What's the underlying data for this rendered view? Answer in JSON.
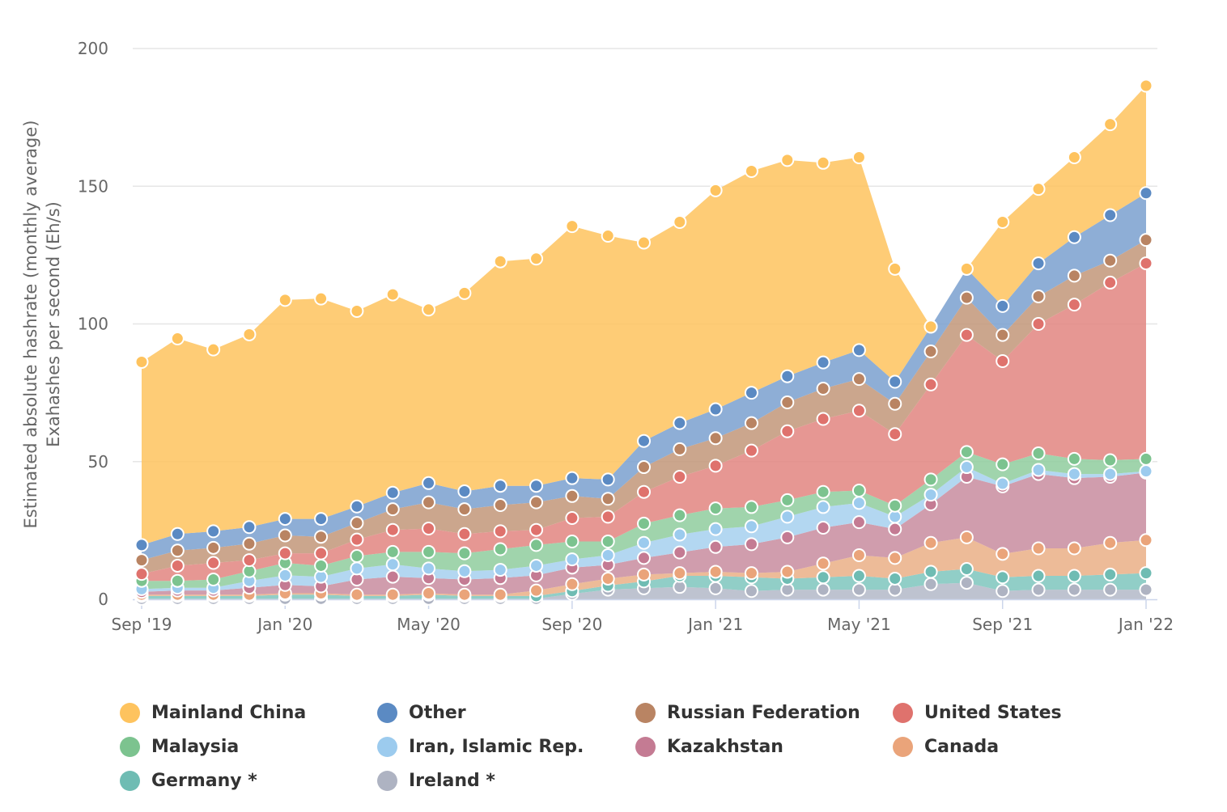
{
  "chart_data": {
    "type": "area",
    "stacked": true,
    "title": "",
    "ylabel": [
      "Estimated absolute hashrate (monthly average)",
      "Exahashes per second (Eh/s)"
    ],
    "ylim": [
      0,
      200
    ],
    "yticks": [
      0,
      50,
      100,
      150,
      200
    ],
    "x": [
      "2019-09",
      "2019-10",
      "2019-11",
      "2019-12",
      "2020-01",
      "2020-02",
      "2020-03",
      "2020-04",
      "2020-05",
      "2020-06",
      "2020-07",
      "2020-08",
      "2020-09",
      "2020-10",
      "2020-11",
      "2020-12",
      "2021-01",
      "2021-02",
      "2021-03",
      "2021-04",
      "2021-05",
      "2021-06",
      "2021-07",
      "2021-08",
      "2021-09",
      "2021-10",
      "2021-11",
      "2021-12",
      "2022-01"
    ],
    "xticks": [
      {
        "x": "2019-09",
        "label": "Sep '19"
      },
      {
        "x": "2020-01",
        "label": "Jan '20"
      },
      {
        "x": "2020-05",
        "label": "May '20"
      },
      {
        "x": "2020-09",
        "label": "Sep '20"
      },
      {
        "x": "2021-01",
        "label": "Jan '21"
      },
      {
        "x": "2021-05",
        "label": "May '21"
      },
      {
        "x": "2021-09",
        "label": "Sep '21"
      },
      {
        "x": "2022-01",
        "label": "Jan '22"
      }
    ],
    "legend_position": "bottom",
    "grid": true,
    "series": [
      {
        "name": "Ireland *",
        "color": "#b3b8c8",
        "values": [
          0.2,
          0.2,
          0.2,
          0.2,
          0.2,
          0.2,
          0.2,
          0.2,
          0.2,
          0.2,
          0.2,
          0.2,
          2,
          3.5,
          4,
          4.5,
          4,
          3,
          3.5,
          3.5,
          3.5,
          3.5,
          5.5,
          6,
          3,
          3.5,
          3.5,
          3.5,
          3.5
        ]
      },
      {
        "name": "Germany *",
        "color": "#7ec5bd",
        "values": [
          1,
          1,
          1,
          1,
          1.5,
          1.5,
          1,
          1,
          1.5,
          1,
          1,
          1,
          1,
          1.5,
          2.5,
          4,
          4.5,
          5,
          4,
          4.5,
          5,
          4,
          4.5,
          5,
          5,
          5,
          5,
          5.5,
          6
        ]
      },
      {
        "name": "Canada",
        "color": "#eaaf86",
        "values": [
          0.5,
          0.5,
          0.5,
          0.5,
          0.5,
          0.5,
          0.5,
          0.5,
          0.5,
          0.5,
          0.5,
          2,
          2.5,
          2.5,
          2.5,
          1,
          1.5,
          1.5,
          2.5,
          5,
          7.5,
          7.5,
          10.5,
          11.5,
          8.5,
          10,
          10,
          11.5,
          12
        ]
      },
      {
        "name": "Kazakhstan",
        "color": "#c88c9f",
        "values": [
          1,
          1.5,
          1.5,
          2.5,
          3,
          2.5,
          5.5,
          6.5,
          5.5,
          5.5,
          6,
          5.5,
          6,
          5,
          6,
          7.5,
          9,
          10.5,
          12.5,
          13,
          12,
          10.5,
          14,
          22,
          24.5,
          27,
          25.5,
          24,
          24.5
        ]
      },
      {
        "name": "Iran, Islamic Rep.",
        "color": "#a6d0ef",
        "values": [
          1,
          1,
          1,
          2.5,
          3.5,
          3.5,
          4,
          4.5,
          3.5,
          3,
          3,
          3.5,
          3,
          3.5,
          5.5,
          6.5,
          6.5,
          6.5,
          7.5,
          7.5,
          7,
          4.5,
          3.5,
          3.5,
          1,
          1.5,
          1.5,
          1,
          0.5
        ]
      },
      {
        "name": "Malaysia",
        "color": "#8fcd9e",
        "values": [
          3,
          2.5,
          3,
          3.5,
          4.5,
          4,
          4.5,
          4.5,
          6,
          6.5,
          7.5,
          7.5,
          6.5,
          5,
          7,
          7,
          7.5,
          7,
          6,
          5.5,
          4.5,
          4,
          5.5,
          5.5,
          7,
          6,
          5.5,
          5,
          4.5
        ]
      },
      {
        "name": "United States",
        "color": "#e28580",
        "values": [
          2.5,
          5.5,
          6,
          4,
          3.5,
          4.5,
          6,
          8,
          8.5,
          7,
          6.5,
          5.5,
          8.5,
          9,
          11.5,
          14,
          15.5,
          20.5,
          25,
          26.5,
          29,
          26,
          34.5,
          42.5,
          37.5,
          47,
          56,
          64.5,
          71
        ]
      },
      {
        "name": "Russian Federation",
        "color": "#c29779",
        "values": [
          5,
          5.5,
          5.5,
          6,
          6.5,
          6,
          6,
          7.5,
          9.5,
          9,
          9.5,
          10,
          8,
          6.5,
          9,
          10,
          10,
          10,
          10.5,
          11,
          11.5,
          11,
          12,
          13.5,
          9.5,
          10,
          10.5,
          8,
          8.5
        ]
      },
      {
        "name": "Other",
        "color": "#7aa0cf",
        "values": [
          5.5,
          6,
          6,
          6,
          6,
          6.5,
          6,
          6,
          7,
          6.5,
          7,
          6,
          6.5,
          7,
          9.5,
          9.5,
          10.5,
          11,
          9.5,
          9.5,
          10.5,
          8,
          9,
          10.5,
          10.5,
          12,
          14,
          16.5,
          17
        ]
      },
      {
        "name": "Mainland China",
        "color": "#fec35e",
        "values": [
          66.5,
          71,
          66,
          70,
          79.5,
          80,
          71,
          72,
          63,
          72,
          81.5,
          82.5,
          91.5,
          88.5,
          72,
          73,
          79.5,
          80.5,
          78.5,
          72.5,
          70,
          41,
          0,
          0,
          30.5,
          27,
          29,
          33,
          39
        ]
      }
    ]
  },
  "legend": {
    "items": [
      {
        "label": "Mainland China",
        "color": "#fec35e"
      },
      {
        "label": "Other",
        "color": "#5b8ac3"
      },
      {
        "label": "Russian Federation",
        "color": "#b98463"
      },
      {
        "label": "United States",
        "color": "#df726d"
      },
      {
        "label": "Malaysia",
        "color": "#7cc38f"
      },
      {
        "label": "Iran, Islamic Rep.",
        "color": "#9ccbee"
      },
      {
        "label": "Kazakhstan",
        "color": "#c47b93"
      },
      {
        "label": "Canada",
        "color": "#eaa47a"
      },
      {
        "label": "Germany *",
        "color": "#6fbcb3"
      },
      {
        "label": "Ireland *",
        "color": "#aeb3c2"
      }
    ]
  }
}
